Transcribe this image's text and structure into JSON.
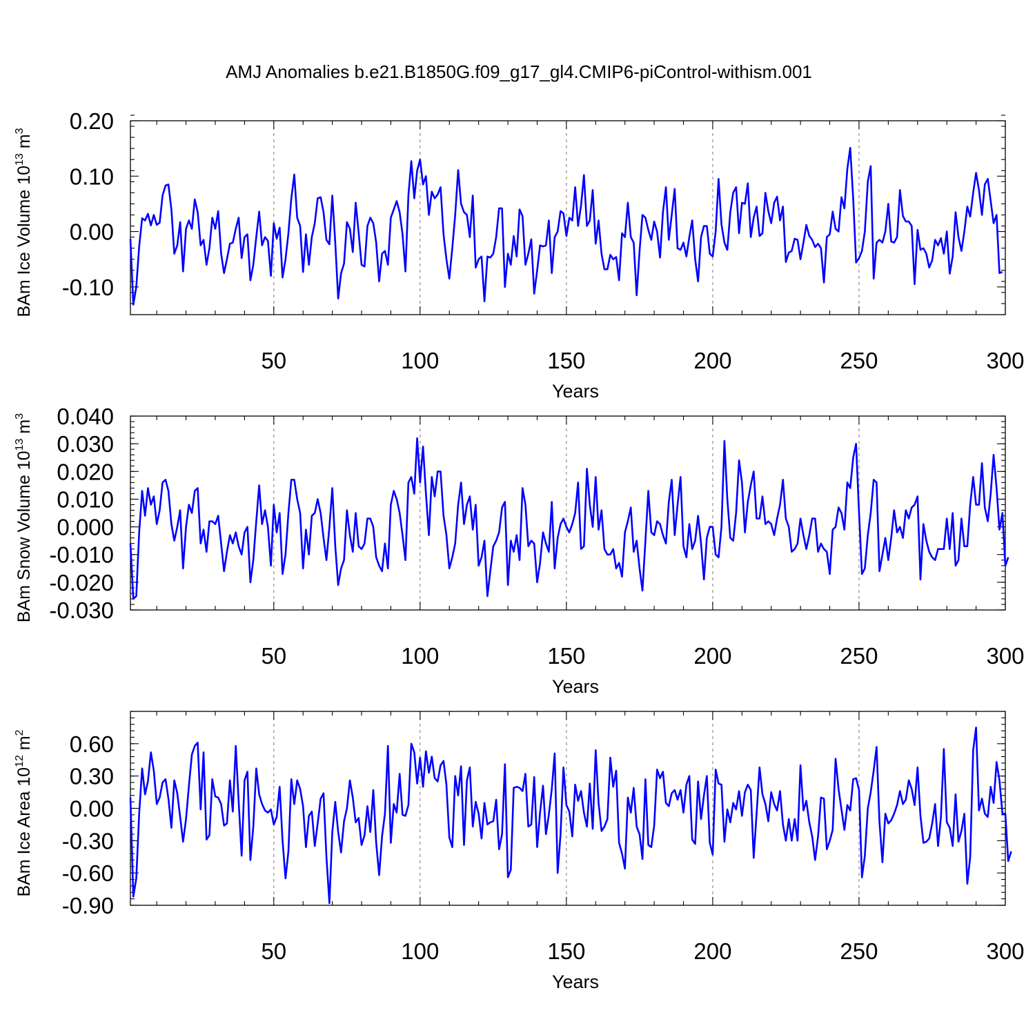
{
  "figure_title": "AMJ Anomalies b.e21.B1850G.f09_g17_gl4.CMIP6-piControl-withism.001",
  "colors": {
    "series": "#0000ff",
    "axes": "#000000",
    "grid": "#8c8c8c",
    "background": "#ffffff"
  },
  "chart_data": [
    {
      "type": "line",
      "title": "",
      "xlabel": "Years",
      "ylabel": "BAm Ice Volume 10",
      "ylabel_exp": "13",
      "ylabel_unit": " m",
      "ylabel_unit_exp": "3",
      "xlim": [
        1,
        300
      ],
      "ylim": [
        -0.15,
        0.2
      ],
      "x_ticks": [
        50,
        100,
        150,
        200,
        250,
        300
      ],
      "y_ticks": [
        -0.1,
        0.0,
        0.1,
        0.2
      ],
      "y_tick_labels": [
        "-0.10",
        "0.00",
        "0.10",
        "0.20"
      ],
      "y_minor_step": 0.02,
      "grid": "dashed vertical at x ticks",
      "series": [
        {
          "x_start": 1,
          "x_step": 1,
          "values": [
            -0.013,
            -0.132,
            -0.1,
            -0.027,
            0.024,
            0.02,
            0.032,
            0.011,
            0.03,
            0.012,
            0.016,
            0.065,
            0.083,
            0.085,
            0.04,
            -0.04,
            -0.025,
            0.017,
            -0.072,
            0.005,
            0.02,
            0.005,
            0.058,
            0.035,
            -0.025,
            -0.015,
            -0.06,
            -0.03,
            0.025,
            0.005,
            0.037,
            -0.04,
            -0.075,
            -0.05,
            -0.022,
            -0.02,
            0.005,
            0.025,
            -0.048,
            -0.01,
            -0.005,
            -0.088,
            -0.06,
            -0.01,
            0.036,
            -0.025,
            -0.01,
            -0.017,
            -0.08,
            0.015,
            -0.013,
            0.007,
            -0.083,
            -0.05,
            -0.003,
            0.06,
            0.103,
            0.025,
            0.01,
            -0.073,
            -0.005,
            -0.06,
            -0.01,
            0.015,
            0.06,
            0.062,
            0.035,
            -0.015,
            -0.023,
            0.065,
            -0.02,
            -0.121,
            -0.075,
            -0.058,
            0.017,
            0.005,
            -0.037,
            0.052,
            -0.002,
            -0.06,
            -0.063,
            0.01,
            0.025,
            0.015,
            -0.02,
            -0.09,
            -0.04,
            -0.035,
            -0.06,
            0.025,
            0.04,
            0.055,
            0.035,
            -0.005,
            -0.072,
            0.065,
            0.127,
            0.06,
            0.11,
            0.13,
            0.085,
            0.1,
            0.03,
            0.072,
            0.06,
            0.067,
            0.08,
            -0.005,
            -0.05,
            -0.085,
            -0.03,
            0.03,
            0.111,
            0.05,
            0.035,
            0.03,
            -0.01,
            0.065,
            -0.065,
            -0.05,
            -0.045,
            -0.126,
            -0.045,
            -0.047,
            -0.04,
            -0.01,
            0.042,
            0.042,
            -0.1,
            -0.04,
            -0.06,
            -0.008,
            -0.045,
            0.04,
            0.028,
            -0.06,
            -0.04,
            -0.014,
            -0.112,
            -0.07,
            -0.025,
            -0.027,
            -0.025,
            0.02,
            -0.075,
            -0.01,
            0.0,
            0.037,
            0.033,
            -0.008,
            0.025,
            0.02,
            0.08,
            0.01,
            0.047,
            0.102,
            0.01,
            0.02,
            0.075,
            -0.022,
            0.02,
            -0.04,
            -0.068,
            -0.068,
            -0.042,
            -0.05,
            -0.046,
            -0.088,
            -0.003,
            -0.01,
            0.052,
            -0.01,
            -0.02,
            -0.115,
            -0.035,
            0.03,
            0.025,
            0.003,
            -0.015,
            0.018,
            0.0,
            -0.047,
            0.035,
            0.08,
            -0.015,
            0.03,
            0.077,
            -0.03,
            -0.033,
            -0.02,
            -0.045,
            -0.01,
            0.02,
            -0.05,
            -0.09,
            -0.01,
            0.01,
            0.01,
            -0.04,
            -0.045,
            0.0,
            0.095,
            0.013,
            -0.02,
            -0.033,
            0.035,
            0.07,
            0.08,
            -0.003,
            0.052,
            0.05,
            0.087,
            -0.01,
            0.025,
            0.045,
            -0.008,
            -0.003,
            0.07,
            0.037,
            0.015,
            0.052,
            0.063,
            0.02,
            0.045,
            -0.055,
            -0.038,
            -0.035,
            -0.013,
            -0.015,
            -0.05,
            -0.02,
            0.012,
            -0.008,
            -0.015,
            -0.028,
            -0.022,
            -0.03,
            -0.092,
            -0.01,
            -0.005,
            0.036,
            0.005,
            0.0,
            0.062,
            0.042,
            0.113,
            0.151,
            0.06,
            -0.056,
            -0.048,
            -0.035,
            0.0,
            0.09,
            0.118,
            -0.085,
            -0.02,
            -0.015,
            -0.02,
            0.0,
            0.05,
            -0.018,
            -0.02,
            -0.01,
            0.075,
            0.028,
            0.018,
            0.018,
            0.01,
            -0.095,
            0.003,
            -0.033,
            -0.03,
            -0.04,
            -0.065,
            -0.052,
            -0.015,
            -0.025,
            -0.012,
            -0.04,
            0.0,
            -0.076,
            -0.045,
            0.035,
            -0.01,
            -0.035,
            0.0,
            0.045,
            0.027,
            0.07,
            0.106,
            0.075,
            0.03,
            0.085,
            0.095,
            0.055,
            0.015,
            0.03,
            -0.075,
            -0.073
          ]
        }
      ]
    },
    {
      "type": "line",
      "title": "",
      "xlabel": "Years",
      "ylabel": "BAm Snow Volume 10",
      "ylabel_exp": "13",
      "ylabel_unit": " m",
      "ylabel_unit_exp": "3",
      "xlim": [
        1,
        300
      ],
      "ylim": [
        -0.03,
        0.04
      ],
      "x_ticks": [
        50,
        100,
        150,
        200,
        250,
        300
      ],
      "y_ticks": [
        -0.03,
        -0.02,
        -0.01,
        0.0,
        0.01,
        0.02,
        0.03,
        0.04
      ],
      "y_tick_labels": [
        "-0.030",
        "-0.020",
        "-0.010",
        "0.000",
        "0.010",
        "0.020",
        "0.030",
        "0.040"
      ],
      "y_minor_step": 0.002,
      "grid": "dashed vertical at x ticks",
      "series": [
        {
          "x_start": 1,
          "x_step": 1,
          "values": [
            -0.006,
            -0.026,
            -0.025,
            -0.002,
            0.013,
            0.004,
            0.014,
            0.008,
            0.011,
            0.001,
            0.006,
            0.016,
            0.017,
            0.013,
            0.001,
            -0.005,
            0.0,
            0.006,
            -0.015,
            0.0,
            0.008,
            0.005,
            0.013,
            0.014,
            -0.006,
            -0.001,
            -0.009,
            0.002,
            0.002,
            0.001,
            0.004,
            -0.006,
            -0.016,
            -0.009,
            -0.003,
            -0.006,
            -0.002,
            -0.007,
            -0.01,
            -0.002,
            0.0,
            -0.02,
            -0.012,
            0.002,
            0.015,
            0.001,
            0.006,
            0.0,
            -0.014,
            0.008,
            -0.002,
            0.005,
            -0.017,
            -0.01,
            0.005,
            0.017,
            0.017,
            0.01,
            0.005,
            -0.015,
            -0.001,
            -0.01,
            0.004,
            0.005,
            0.01,
            0.005,
            -0.004,
            -0.012,
            0.0,
            0.014,
            -0.007,
            -0.021,
            -0.015,
            -0.012,
            0.006,
            -0.003,
            -0.009,
            0.005,
            -0.007,
            -0.008,
            -0.006,
            0.003,
            0.003,
            0.0,
            -0.011,
            -0.014,
            -0.016,
            -0.006,
            -0.015,
            0.008,
            0.013,
            0.01,
            0.005,
            -0.003,
            -0.012,
            0.016,
            0.018,
            0.012,
            0.032,
            0.016,
            0.029,
            0.012,
            -0.003,
            0.018,
            0.011,
            0.02,
            0.02,
            0.004,
            -0.003,
            -0.015,
            -0.011,
            -0.006,
            0.008,
            0.016,
            0.001,
            0.008,
            0.011,
            -0.001,
            0.008,
            -0.014,
            -0.011,
            -0.005,
            -0.025,
            -0.016,
            -0.007,
            -0.005,
            -0.002,
            0.007,
            0.009,
            -0.021,
            -0.005,
            -0.009,
            -0.003,
            -0.012,
            0.014,
            0.008,
            -0.007,
            -0.005,
            -0.006,
            -0.02,
            -0.013,
            -0.002,
            -0.006,
            -0.009,
            0.009,
            -0.015,
            -0.004,
            0.001,
            0.003,
            0.0,
            -0.002,
            0.001,
            0.005,
            0.016,
            -0.008,
            -0.007,
            0.021,
            0.008,
            0.0,
            0.018,
            -0.001,
            0.006,
            -0.008,
            -0.01,
            -0.01,
            -0.008,
            -0.015,
            -0.013,
            -0.018,
            -0.002,
            0.002,
            0.007,
            -0.009,
            -0.005,
            -0.015,
            -0.023,
            -0.005,
            0.013,
            -0.002,
            -0.003,
            0.002,
            0.001,
            -0.003,
            -0.006,
            0.009,
            0.017,
            -0.003,
            0.008,
            0.018,
            -0.007,
            -0.011,
            0.001,
            -0.008,
            -0.005,
            0.004,
            -0.006,
            -0.019,
            -0.004,
            0.0,
            0.0,
            -0.01,
            -0.011,
            0.0,
            0.031,
            0.01,
            -0.004,
            -0.005,
            0.005,
            0.024,
            0.016,
            -0.002,
            0.009,
            0.015,
            0.02,
            0.003,
            0.003,
            0.011,
            0.001,
            0.002,
            0.001,
            -0.003,
            0.003,
            0.008,
            0.017,
            0.003,
            0.0,
            -0.009,
            -0.008,
            -0.006,
            0.003,
            -0.003,
            -0.008,
            -0.003,
            0.003,
            0.003,
            -0.009,
            -0.006,
            -0.008,
            -0.009,
            -0.017,
            -0.001,
            0.0,
            0.007,
            0.005,
            -0.001,
            0.016,
            0.014,
            0.025,
            0.03,
            0.005,
            -0.017,
            -0.015,
            -0.003,
            0.005,
            0.017,
            0.016,
            -0.016,
            -0.01,
            -0.004,
            -0.012,
            -0.004,
            0.006,
            -0.002,
            0.0,
            -0.004,
            0.006,
            0.003,
            0.007,
            0.008,
            0.011,
            -0.019,
            0.001,
            -0.005,
            -0.009,
            -0.011,
            -0.012,
            -0.008,
            -0.008,
            -0.008,
            0.003,
            -0.008,
            0.005,
            -0.014,
            -0.012,
            0.003,
            -0.007,
            -0.007,
            0.008,
            0.018,
            0.008,
            0.008,
            0.023,
            0.007,
            0.002,
            0.012,
            0.026,
            0.014,
            -0.001,
            0.005,
            -0.014,
            -0.011
          ]
        }
      ]
    },
    {
      "type": "line",
      "title": "",
      "xlabel": "Years",
      "ylabel": "BAm Ice Area 10",
      "ylabel_exp": "12",
      "ylabel_unit": " m",
      "ylabel_unit_exp": "2",
      "xlim": [
        1,
        300
      ],
      "ylim": [
        -0.9,
        0.9
      ],
      "x_ticks": [
        50,
        100,
        150,
        200,
        250,
        300
      ],
      "y_ticks": [
        -0.9,
        -0.6,
        -0.3,
        0.0,
        0.3,
        0.6
      ],
      "y_tick_labels": [
        "-0.90",
        "-0.60",
        "-0.30",
        "0.00",
        "0.30",
        "0.60"
      ],
      "y_minor_step": 0.06,
      "grid": "dashed vertical at x ticks",
      "series": [
        {
          "x_start": 1,
          "x_step": 1,
          "values": [
            0.1,
            -0.82,
            -0.65,
            -0.05,
            0.37,
            0.13,
            0.25,
            0.52,
            0.35,
            0.04,
            0.1,
            0.24,
            0.27,
            0.09,
            -0.18,
            0.26,
            0.14,
            -0.08,
            -0.31,
            -0.1,
            0.21,
            0.5,
            0.58,
            0.61,
            -0.01,
            0.52,
            -0.29,
            -0.25,
            0.27,
            0.11,
            0.1,
            0.04,
            -0.16,
            -0.14,
            0.26,
            -0.03,
            0.58,
            0.06,
            -0.44,
            0.26,
            0.34,
            -0.48,
            -0.17,
            0.37,
            0.13,
            0.04,
            -0.02,
            -0.04,
            -0.01,
            -0.15,
            -0.08,
            0.2,
            -0.3,
            -0.65,
            -0.4,
            0.27,
            0.04,
            0.26,
            0.18,
            0.02,
            -0.36,
            -0.07,
            -0.03,
            -0.35,
            -0.14,
            0.09,
            0.14,
            -0.45,
            -0.88,
            -0.22,
            0.06,
            -0.22,
            -0.41,
            -0.12,
            0.0,
            0.26,
            0.1,
            -0.13,
            -0.09,
            -0.34,
            -0.25,
            0.02,
            -0.22,
            0.17,
            -0.32,
            -0.62,
            -0.26,
            -0.05,
            0.58,
            -0.32,
            0.04,
            -0.04,
            0.32,
            -0.06,
            -0.07,
            0.03,
            0.6,
            0.52,
            0.23,
            0.47,
            0.2,
            0.53,
            0.33,
            0.48,
            0.28,
            0.25,
            0.4,
            0.44,
            0.22,
            -0.27,
            -0.36,
            0.3,
            0.12,
            0.39,
            -0.34,
            0.26,
            0.38,
            -0.17,
            0.06,
            -0.05,
            -0.28,
            0.05,
            -0.15,
            -0.13,
            -0.12,
            0.08,
            -0.38,
            -0.24,
            0.41,
            -0.64,
            -0.57,
            0.19,
            0.2,
            0.19,
            0.16,
            0.32,
            -0.17,
            -0.15,
            0.29,
            -0.36,
            -0.04,
            0.21,
            -0.24,
            -0.06,
            0.18,
            0.51,
            -0.6,
            -0.24,
            0.38,
            0.03,
            -0.03,
            -0.26,
            0.22,
            0.07,
            0.16,
            -0.04,
            -0.17,
            0.23,
            -0.19,
            0.54,
            0.05,
            -0.21,
            -0.17,
            -0.1,
            0.47,
            0.2,
            0.35,
            -0.32,
            -0.42,
            -0.56,
            0.1,
            -0.04,
            0.19,
            -0.17,
            -0.24,
            -0.47,
            0.27,
            -0.34,
            -0.36,
            -0.16,
            0.36,
            0.28,
            0.34,
            0.05,
            0.02,
            0.14,
            0.17,
            0.08,
            0.17,
            -0.04,
            0.22,
            0.3,
            -0.29,
            -0.33,
            0.25,
            -0.1,
            0.12,
            0.3,
            -0.32,
            -0.43,
            0.36,
            0.23,
            0.22,
            -0.31,
            -0.01,
            -0.13,
            0.05,
            -0.01,
            0.16,
            -0.07,
            0.15,
            0.22,
            0.17,
            -0.46,
            -0.05,
            0.38,
            0.13,
            0.04,
            -0.12,
            0.15,
            0.04,
            -0.02,
            0.16,
            -0.15,
            -0.3,
            -0.1,
            -0.3,
            -0.1,
            -0.3,
            0.4,
            -0.02,
            0.07,
            -0.13,
            -0.26,
            -0.48,
            -0.26,
            0.1,
            0.09,
            -0.38,
            -0.3,
            -0.2,
            0.46,
            0.18,
            -0.01,
            -0.2,
            0.03,
            -0.02,
            0.27,
            0.28,
            0.17,
            -0.64,
            -0.44,
            0.0,
            0.15,
            0.35,
            0.57,
            -0.13,
            -0.5,
            -0.05,
            -0.14,
            -0.11,
            -0.05,
            0.03,
            0.16,
            0.04,
            0.08,
            0.26,
            0.18,
            0.03,
            0.38,
            -0.07,
            -0.32,
            -0.31,
            -0.28,
            -0.14,
            0.04,
            -0.35,
            -0.08,
            0.55,
            -0.13,
            -0.18,
            -0.35,
            0.13,
            -0.31,
            -0.21,
            -0.05,
            -0.7,
            -0.45,
            0.54,
            0.75,
            -0.02,
            0.09,
            -0.05,
            -0.08,
            0.2,
            0.05,
            0.43,
            0.26,
            -0.05,
            -0.05,
            -0.49,
            -0.4
          ]
        }
      ]
    }
  ]
}
